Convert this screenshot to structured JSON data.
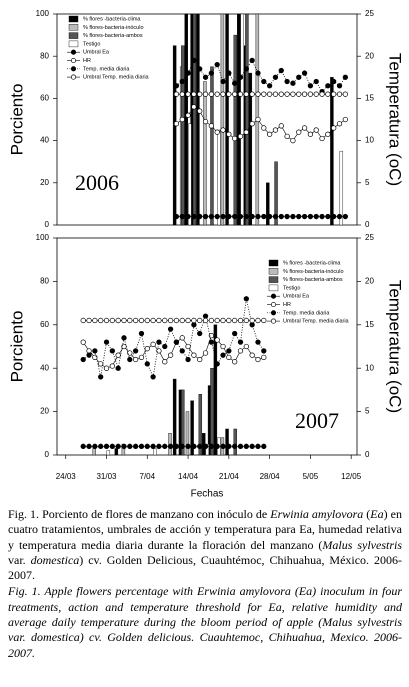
{
  "chart_data": [
    {
      "type": "bar",
      "annotation": "2006",
      "annotation_position": "lower left",
      "ylabel": "Porciento",
      "y2label": "Temperatura (oC)",
      "xlim": [
        -1.5,
        50
      ],
      "ylim": [
        0,
        100
      ],
      "yticks": [
        0,
        20,
        40,
        60,
        80,
        100
      ],
      "y2lim": [
        0,
        25
      ],
      "y2ticks": [
        0,
        5,
        10,
        15,
        20,
        25
      ],
      "legend": "upper left",
      "series": [
        {
          "name": "% flores -bacteria-clima",
          "type": "bar",
          "color": "#000000",
          "x": [
            19,
            21,
            22,
            23,
            28,
            30,
            31,
            32,
            35,
            46
          ],
          "values": [
            85,
            100,
            100,
            100,
            100,
            100,
            85,
            72,
            20,
            70
          ]
        },
        {
          "name": "% flores-bacteria-inóculo",
          "type": "bar",
          "color": "#bbbbbb",
          "x": [
            20,
            24,
            27,
            33
          ],
          "values": [
            75,
            68,
            100,
            100
          ]
        },
        {
          "name": "% flores-bacteria-ambos",
          "type": "bar",
          "color": "#555555",
          "x": [
            20,
            22,
            25,
            29,
            31,
            36
          ],
          "values": [
            85,
            100,
            75,
            90,
            100,
            30
          ]
        },
        {
          "name": "Testigo",
          "type": "bar",
          "color": "#ffffff",
          "x": [
            21,
            26,
            30,
            47
          ],
          "values": [
            48,
            45,
            100,
            35
          ]
        },
        {
          "name": "Umbral Ea",
          "type": "line",
          "line": "solid",
          "marker": "filled",
          "color": "#000000",
          "axis": "y2",
          "x": [
            19,
            20,
            21,
            22,
            23,
            24,
            25,
            26,
            27,
            28,
            29,
            30,
            31,
            32,
            33,
            34,
            35,
            36,
            37,
            38,
            39,
            40,
            41,
            42,
            43,
            44,
            45,
            46,
            47,
            48
          ],
          "values": [
            1,
            1,
            1,
            1,
            1,
            1,
            1,
            1,
            1,
            1,
            1,
            1,
            1,
            1,
            1,
            1,
            1,
            1,
            1,
            1,
            1,
            1,
            1,
            1,
            1,
            1,
            1,
            1,
            1,
            1
          ]
        },
        {
          "name": "HR",
          "type": "line",
          "line": "solid",
          "marker": "open",
          "color": "#000000",
          "x": [
            19,
            20,
            21,
            22,
            23,
            24,
            25,
            26,
            27,
            28,
            29,
            30,
            31,
            32,
            33,
            34,
            35,
            36,
            37,
            38,
            39,
            40,
            41,
            42,
            43,
            44,
            45,
            46,
            47,
            48
          ],
          "values": [
            48,
            50,
            52,
            56,
            54,
            49,
            47,
            44,
            45,
            43,
            41,
            42,
            44,
            48,
            50,
            46,
            43,
            45,
            47,
            42,
            40,
            44,
            46,
            43,
            45,
            41,
            43,
            46,
            48,
            50
          ]
        },
        {
          "name": "Temp. media diaria",
          "type": "line",
          "line": "dotted",
          "marker": "filled",
          "color": "#000000",
          "axis": "y2",
          "x": [
            19,
            20,
            21,
            22,
            23,
            24,
            25,
            26,
            27,
            28,
            29,
            30,
            31,
            32,
            33,
            34,
            35,
            36,
            37,
            38,
            39,
            40,
            41,
            42,
            43,
            44,
            45,
            46,
            47,
            48
          ],
          "values": [
            16.5,
            17,
            18,
            19.5,
            18.5,
            17.5,
            18,
            19,
            17,
            18,
            16.8,
            17.5,
            18.5,
            19.5,
            18,
            17,
            16.5,
            17.5,
            18.3,
            17,
            16.8,
            17.5,
            18,
            16.5,
            17,
            15.8,
            16.5,
            17,
            16.5,
            17.5
          ]
        },
        {
          "name": "Umbral Temp. media diaria",
          "type": "line",
          "line": "solid",
          "marker": "open",
          "color": "#000000",
          "axis": "y2",
          "x": [
            19,
            20,
            21,
            22,
            23,
            24,
            25,
            26,
            27,
            28,
            29,
            30,
            31,
            32,
            33,
            34,
            35,
            36,
            37,
            38,
            39,
            40,
            41,
            42,
            43,
            44,
            45,
            46,
            47,
            48
          ],
          "values": [
            15.5,
            15.5,
            15.5,
            15.5,
            15.5,
            15.5,
            15.5,
            15.5,
            15.5,
            15.5,
            15.5,
            15.5,
            15.5,
            15.5,
            15.5,
            15.5,
            15.5,
            15.5,
            15.5,
            15.5,
            15.5,
            15.5,
            15.5,
            15.5,
            15.5,
            15.5,
            15.5,
            15.5,
            15.5,
            15.5
          ]
        }
      ]
    },
    {
      "type": "bar",
      "annotation": "2007",
      "annotation_position": "lower right",
      "ylabel": "Porciento",
      "y2label": "Temperatura (oC)",
      "xlabel": "Fechas",
      "xlim": [
        -1.5,
        50
      ],
      "xticks": [
        {
          "value": 0,
          "label": "24/03"
        },
        {
          "value": 7,
          "label": "31/03"
        },
        {
          "value": 14,
          "label": "7/04"
        },
        {
          "value": 21,
          "label": "14/04"
        },
        {
          "value": 28,
          "label": "21/04"
        },
        {
          "value": 35,
          "label": "28/04"
        },
        {
          "value": 42,
          "label": "5/05"
        },
        {
          "value": 49,
          "label": "12/05"
        }
      ],
      "ylim": [
        0,
        100
      ],
      "yticks": [
        0,
        20,
        40,
        60,
        80,
        100
      ],
      "y2lim": [
        0,
        25
      ],
      "y2ticks": [
        0,
        5,
        10,
        15,
        20,
        25
      ],
      "legend": "upper right",
      "series": [
        {
          "name": "% flores -bacteria-clima",
          "type": "bar",
          "color": "#000000",
          "x": [
            9,
            19,
            20,
            22,
            24,
            25,
            26,
            28
          ],
          "values": [
            3,
            35,
            30,
            25,
            10,
            32,
            60,
            12
          ]
        },
        {
          "name": "% flores-bacteria-inóculo",
          "type": "bar",
          "color": "#bbbbbb",
          "x": [
            5,
            10,
            18,
            21,
            27
          ],
          "values": [
            3,
            5,
            10,
            20,
            8
          ]
        },
        {
          "name": "% flores-bacteria-ambos",
          "type": "bar",
          "color": "#555555",
          "x": [
            20,
            23,
            25,
            29
          ],
          "values": [
            30,
            28,
            40,
            12
          ]
        },
        {
          "name": "Testigo",
          "type": "bar",
          "color": "#ffffff",
          "x": [
            7,
            15,
            24,
            26
          ],
          "values": [
            2,
            3,
            5,
            8
          ]
        },
        {
          "name": "Umbral Ea",
          "type": "line",
          "line": "solid",
          "marker": "filled",
          "color": "#000000",
          "axis": "y2",
          "x": [
            3,
            4,
            5,
            6,
            7,
            8,
            9,
            10,
            11,
            12,
            13,
            14,
            15,
            16,
            17,
            18,
            19,
            20,
            21,
            22,
            23,
            24,
            25,
            26,
            27,
            28,
            29,
            30,
            31,
            32,
            33,
            34
          ],
          "values": [
            1,
            1,
            1,
            1,
            1,
            1,
            1,
            1,
            1,
            1,
            1,
            1,
            1,
            1,
            1,
            1,
            1,
            1,
            1,
            1,
            1,
            1,
            1,
            1,
            1,
            1,
            1,
            1,
            1,
            1,
            1,
            1
          ]
        },
        {
          "name": "HR",
          "type": "line",
          "line": "solid",
          "marker": "open",
          "color": "#000000",
          "x": [
            3,
            4,
            5,
            6,
            7,
            8,
            9,
            10,
            11,
            12,
            13,
            14,
            15,
            16,
            17,
            18,
            19,
            20,
            21,
            22,
            23,
            24,
            25,
            26,
            27,
            28,
            29,
            30,
            31,
            32,
            33,
            34
          ],
          "values": [
            52,
            48,
            45,
            42,
            40,
            41,
            46,
            50,
            47,
            44,
            45,
            49,
            51,
            48,
            43,
            46,
            52,
            54,
            50,
            46,
            44,
            47,
            55,
            53,
            50,
            45,
            43,
            48,
            50,
            46,
            44,
            45
          ]
        },
        {
          "name": "Temp. media diaria",
          "type": "line",
          "line": "dotted",
          "marker": "filled",
          "color": "#000000",
          "axis": "y2",
          "x": [
            3,
            4,
            5,
            6,
            7,
            8,
            9,
            10,
            11,
            12,
            13,
            14,
            15,
            16,
            17,
            18,
            19,
            20,
            21,
            22,
            23,
            24,
            25,
            26,
            27,
            28,
            29,
            30,
            31,
            32,
            33,
            34
          ],
          "values": [
            11,
            11.5,
            12,
            9,
            13,
            12,
            10,
            13.5,
            11,
            12,
            14,
            10.5,
            9,
            13,
            12.5,
            14.5,
            13,
            12,
            11,
            15,
            14,
            16,
            13,
            10.5,
            11.5,
            12,
            14,
            13,
            18,
            15,
            13,
            12
          ]
        },
        {
          "name": "Umbral Temp. media diaria",
          "type": "line",
          "line": "solid",
          "marker": "open",
          "color": "#000000",
          "axis": "y2",
          "x": [
            3,
            4,
            5,
            6,
            7,
            8,
            9,
            10,
            11,
            12,
            13,
            14,
            15,
            16,
            17,
            18,
            19,
            20,
            21,
            22,
            23,
            24,
            25,
            26,
            27,
            28,
            29,
            30,
            31,
            32,
            33,
            34
          ],
          "values": [
            15.5,
            15.5,
            15.5,
            15.5,
            15.5,
            15.5,
            15.5,
            15.5,
            15.5,
            15.5,
            15.5,
            15.5,
            15.5,
            15.5,
            15.5,
            15.5,
            15.5,
            15.5,
            15.5,
            15.5,
            15.5,
            15.5,
            15.5,
            15.5,
            15.5,
            15.5,
            15.5,
            15.5,
            15.5,
            15.5,
            15.5,
            15.5
          ]
        }
      ]
    }
  ],
  "caption": {
    "es": [
      {
        "text": "Fig. 1. Porciento de flores de manzano con inóculo de ",
        "italic": false
      },
      {
        "text": "Erwinia amylovora",
        "italic": true
      },
      {
        "text": " (",
        "italic": false
      },
      {
        "text": "Ea",
        "italic": true
      },
      {
        "text": ") en cuatro tratamientos, umbrales de acción y temperatura para Ea, humedad relativa y temperatura media diaria durante la floración del manzano (",
        "italic": false
      },
      {
        "text": "Malus sylvestris",
        "italic": true
      },
      {
        "text": " var. ",
        "italic": false
      },
      {
        "text": "domestica",
        "italic": true
      },
      {
        "text": ") cv. Golden Delicious, Cuauhtémoc, Chihuahua, México. 2006-2007.",
        "italic": false
      }
    ],
    "en": [
      {
        "text": "Fig. 1. Apple flowers percentage with Erwinia amylovora (Ea) inoculum in four treatments, action and temperature threshold for Ea, relative humidity and average daily temperature during the bloom period of apple (Malus sylvestris var. domestica) cv. Golden delicious. Cuauhtemoc, Chihuahua, Mexico. 2006-2007.",
        "italic": true
      }
    ]
  }
}
